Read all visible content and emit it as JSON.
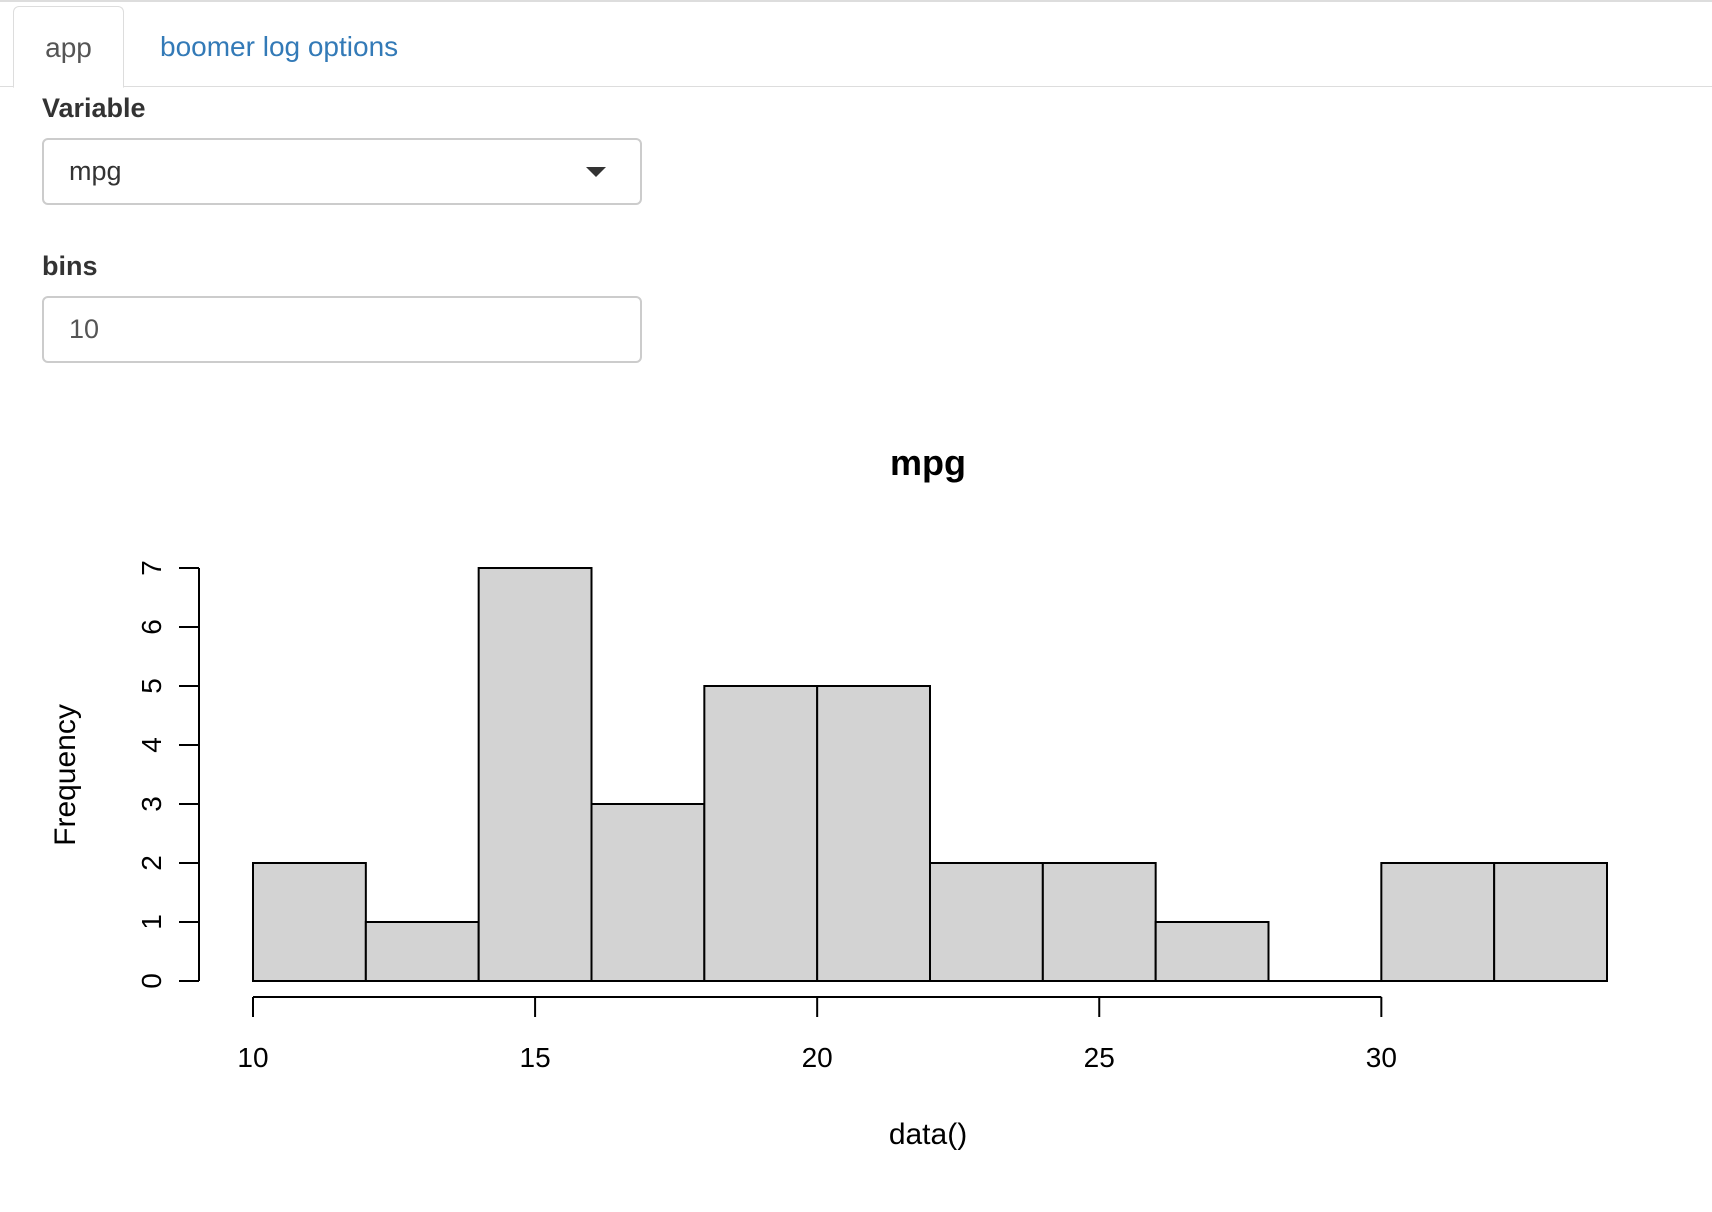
{
  "tabs": [
    {
      "label": "app",
      "active": true
    },
    {
      "label": "boomer log options",
      "active": false
    }
  ],
  "controls": {
    "variable": {
      "label": "Variable",
      "value": "mpg"
    },
    "bins": {
      "label": "bins",
      "value": "10"
    }
  },
  "chart_data": {
    "type": "bar",
    "title": "mpg",
    "xlabel": "data()",
    "ylabel": "Frequency",
    "bin_edges": [
      10,
      12,
      14,
      16,
      18,
      20,
      22,
      24,
      26,
      28,
      30,
      32,
      34
    ],
    "values": [
      2,
      1,
      7,
      3,
      5,
      5,
      2,
      2,
      1,
      0,
      2,
      2
    ],
    "xlim": [
      10,
      34
    ],
    "ylim": [
      0,
      7
    ],
    "x_ticks": [
      10,
      15,
      20,
      25,
      30
    ],
    "y_ticks": [
      0,
      1,
      2,
      3,
      4,
      5,
      6,
      7
    ],
    "bar_color": "#d3d3d3",
    "grid": false
  }
}
